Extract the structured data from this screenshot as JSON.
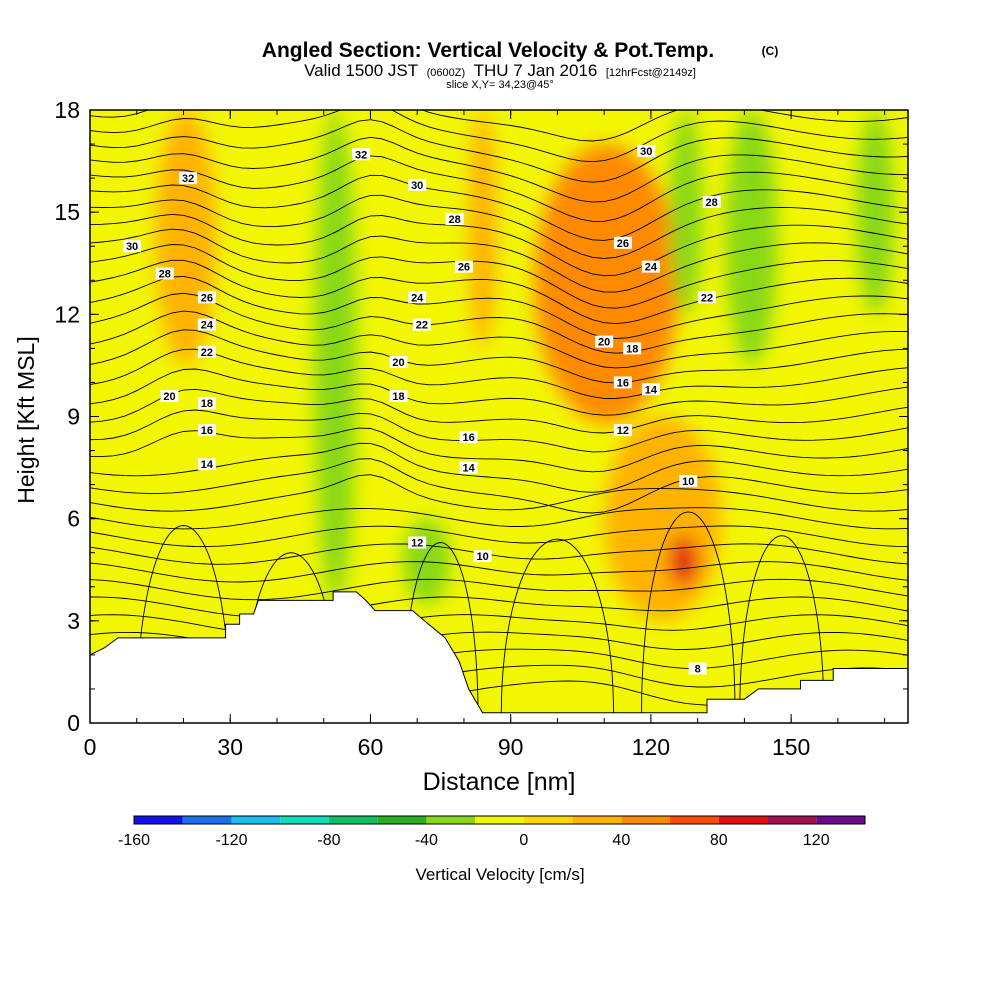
{
  "title": {
    "main": "Angled Section: Vertical Velocity & Pot.Temp.",
    "main_suffix": "(C)",
    "valid_prefix": "Valid 1500 JST",
    "valid_small1": "(0600Z)",
    "valid_mid": "THU 7 Jan 2016",
    "valid_small2": "[12hrFcst@2149z]",
    "slice": "slice X,Y= 34,23@45°"
  },
  "chart_data": {
    "type": "heatmap",
    "xlabel": "Distance [nm]",
    "ylabel": "Height [Kft MSL]",
    "xlim": [
      0,
      175
    ],
    "ylim": [
      0,
      18
    ],
    "x_ticks": [
      0,
      30,
      60,
      90,
      120,
      150
    ],
    "y_ticks": [
      0,
      3,
      6,
      9,
      12,
      15,
      18
    ],
    "terrain_kft": [
      [
        0,
        2.0
      ],
      [
        3,
        2.2
      ],
      [
        6,
        2.5
      ],
      [
        29,
        2.5
      ],
      [
        29,
        2.9
      ],
      [
        32,
        2.9
      ],
      [
        32,
        3.2
      ],
      [
        35,
        3.2
      ],
      [
        36,
        3.6
      ],
      [
        52,
        3.6
      ],
      [
        52,
        3.85
      ],
      [
        57,
        3.85
      ],
      [
        59,
        3.6
      ],
      [
        61,
        3.3
      ],
      [
        69,
        3.3
      ],
      [
        72,
        2.95
      ],
      [
        76,
        2.5
      ],
      [
        79,
        1.8
      ],
      [
        81,
        1.0
      ],
      [
        84,
        0.3
      ],
      [
        132,
        0.3
      ],
      [
        132,
        0.7
      ],
      [
        140,
        0.7
      ],
      [
        143,
        1.0
      ],
      [
        152,
        1.0
      ],
      [
        152,
        1.25
      ],
      [
        159,
        1.25
      ],
      [
        159,
        1.6
      ],
      [
        175,
        1.6
      ]
    ],
    "velocity_regions": [
      {
        "name": "updraft-left",
        "value": 20,
        "x": [
          14,
          27
        ],
        "y": [
          10.5,
          18
        ]
      },
      {
        "name": "updraft-upper-mid",
        "value": 20,
        "x": [
          81,
          87
        ],
        "y": [
          11,
          18
        ]
      },
      {
        "name": "updraft-main",
        "value": 40,
        "x": [
          95,
          126
        ],
        "y": [
          8.8,
          17
        ]
      },
      {
        "name": "updraft-core",
        "value": 50,
        "x": [
          101,
          123
        ],
        "y": [
          10,
          14.5
        ]
      },
      {
        "name": "updraft-lower",
        "value": 30,
        "x": [
          110,
          135
        ],
        "y": [
          3,
          9
        ]
      },
      {
        "name": "updraft-low-core",
        "value": 80,
        "x": [
          124,
          130
        ],
        "y": [
          4,
          5.5
        ]
      },
      {
        "name": "downdraft-upper",
        "value": -40,
        "x": [
          48,
          57
        ],
        "y": [
          3.5,
          18
        ]
      },
      {
        "name": "downdraft-right1",
        "value": -40,
        "x": [
          124,
          131
        ],
        "y": [
          12,
          18
        ]
      },
      {
        "name": "downdraft-right2",
        "value": -40,
        "x": [
          136,
          147
        ],
        "y": [
          10.5,
          18
        ]
      },
      {
        "name": "downdraft-right3",
        "value": -30,
        "x": [
          164,
          172
        ],
        "y": [
          12,
          18
        ]
      },
      {
        "name": "downdraft-low-left",
        "value": -20,
        "x": [
          9,
          18
        ],
        "y": [
          2.5,
          6.5
        ]
      },
      {
        "name": "downdraft-low-mid",
        "value": -40,
        "x": [
          67,
          77
        ],
        "y": [
          3.5,
          6
        ]
      },
      {
        "name": "downdraft-low-right",
        "value": -20,
        "x": [
          162,
          175
        ],
        "y": [
          3.5,
          7
        ]
      }
    ],
    "theta_labels": [
      {
        "text": "32",
        "x": 21,
        "y": 16.0
      },
      {
        "text": "30",
        "x": 9,
        "y": 14.0
      },
      {
        "text": "28",
        "x": 16,
        "y": 13.2
      },
      {
        "text": "26",
        "x": 25,
        "y": 12.5
      },
      {
        "text": "24",
        "x": 25,
        "y": 11.7
      },
      {
        "text": "22",
        "x": 25,
        "y": 10.9
      },
      {
        "text": "20",
        "x": 17,
        "y": 9.6
      },
      {
        "text": "18",
        "x": 25,
        "y": 9.4
      },
      {
        "text": "16",
        "x": 25,
        "y": 8.6
      },
      {
        "text": "14",
        "x": 25,
        "y": 7.6
      },
      {
        "text": "32",
        "x": 58,
        "y": 16.7
      },
      {
        "text": "30",
        "x": 70,
        "y": 15.8
      },
      {
        "text": "28",
        "x": 78,
        "y": 14.8
      },
      {
        "text": "26",
        "x": 80,
        "y": 13.4
      },
      {
        "text": "24",
        "x": 70,
        "y": 12.5
      },
      {
        "text": "22",
        "x": 71,
        "y": 11.7
      },
      {
        "text": "20",
        "x": 66,
        "y": 10.6
      },
      {
        "text": "18",
        "x": 66,
        "y": 9.6
      },
      {
        "text": "16",
        "x": 81,
        "y": 8.4
      },
      {
        "text": "14",
        "x": 81,
        "y": 7.5
      },
      {
        "text": "12",
        "x": 70,
        "y": 5.3
      },
      {
        "text": "10",
        "x": 84,
        "y": 4.9
      },
      {
        "text": "30",
        "x": 119,
        "y": 16.8
      },
      {
        "text": "28",
        "x": 133,
        "y": 15.3
      },
      {
        "text": "26",
        "x": 114,
        "y": 14.1
      },
      {
        "text": "24",
        "x": 120,
        "y": 13.4
      },
      {
        "text": "22",
        "x": 132,
        "y": 12.5
      },
      {
        "text": "20",
        "x": 110,
        "y": 11.2
      },
      {
        "text": "18",
        "x": 116,
        "y": 11.0
      },
      {
        "text": "16",
        "x": 114,
        "y": 10.0
      },
      {
        "text": "14",
        "x": 120,
        "y": 9.8
      },
      {
        "text": "12",
        "x": 114,
        "y": 8.6
      },
      {
        "text": "10",
        "x": 128,
        "y": 7.1
      },
      {
        "text": "8",
        "x": 130,
        "y": 1.6
      }
    ],
    "colorbar": {
      "label": "Vertical Velocity [cm/s]",
      "tick_labels": [
        "-160",
        "-120",
        "-80",
        "-40",
        "0",
        "40",
        "80",
        "120"
      ],
      "tick_values": [
        -160,
        -120,
        -80,
        -40,
        0,
        40,
        80,
        120
      ],
      "bins": [
        {
          "from": -160,
          "to": -140,
          "color": "#1010ee"
        },
        {
          "from": -140,
          "to": -120,
          "color": "#1a6ff0"
        },
        {
          "from": -120,
          "to": -100,
          "color": "#16c0f0"
        },
        {
          "from": -100,
          "to": -80,
          "color": "#10ddb8"
        },
        {
          "from": -80,
          "to": -60,
          "color": "#10c060"
        },
        {
          "from": -60,
          "to": -40,
          "color": "#28b020"
        },
        {
          "from": -40,
          "to": -20,
          "color": "#88d818"
        },
        {
          "from": -20,
          "to": 0,
          "color": "#f2f600"
        },
        {
          "from": 0,
          "to": 20,
          "color": "#ffd800"
        },
        {
          "from": 20,
          "to": 40,
          "color": "#ffb300"
        },
        {
          "from": 40,
          "to": 60,
          "color": "#ff8a00"
        },
        {
          "from": 60,
          "to": 80,
          "color": "#ff4a00"
        },
        {
          "from": 80,
          "to": 100,
          "color": "#e01010"
        },
        {
          "from": 100,
          "to": 120,
          "color": "#a01050"
        },
        {
          "from": 120,
          "to": 140,
          "color": "#6a0a8a"
        }
      ]
    }
  }
}
